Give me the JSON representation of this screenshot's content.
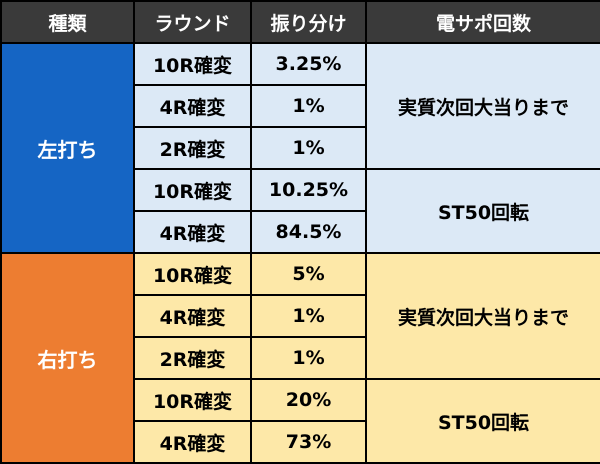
{
  "headers": {
    "type": "種類",
    "round": "ラウンド",
    "distribution": "振り分け",
    "support": "電サポ回数"
  },
  "colors": {
    "header_bg": "#3a3a3a",
    "left_category": "#1565c4",
    "right_category": "#ed7d31",
    "left_cells": "#dce9f6",
    "right_cells": "#fde8a8"
  },
  "left": {
    "category": "左打ち",
    "rows": [
      {
        "round": "10R確変",
        "pct": "3.25%"
      },
      {
        "round": "4R確変",
        "pct": "1%"
      },
      {
        "round": "2R確変",
        "pct": "1%"
      },
      {
        "round": "10R確変",
        "pct": "10.25%"
      },
      {
        "round": "4R確変",
        "pct": "84.5%"
      }
    ],
    "support_a": "実質次回大当りまで",
    "support_b": "ST50回転"
  },
  "right": {
    "category": "右打ち",
    "rows": [
      {
        "round": "10R確変",
        "pct": "5%"
      },
      {
        "round": "4R確変",
        "pct": "1%"
      },
      {
        "round": "2R確変",
        "pct": "1%"
      },
      {
        "round": "10R確変",
        "pct": "20%"
      },
      {
        "round": "4R確変",
        "pct": "73%"
      }
    ],
    "support_a": "実質次回大当りまで",
    "support_b": "ST50回転"
  }
}
